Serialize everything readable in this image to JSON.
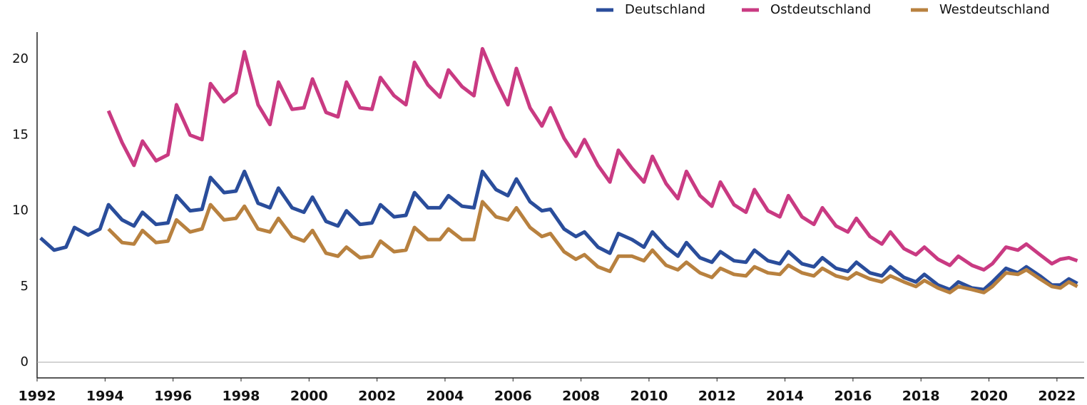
{
  "chart_data": {
    "type": "line",
    "x": [
      1992.1,
      1992.5,
      1992.85,
      1993.1,
      1993.5,
      1993.85,
      1994.1,
      1994.5,
      1994.85,
      1995.1,
      1995.5,
      1995.85,
      1996.1,
      1996.5,
      1996.85,
      1997.1,
      1997.5,
      1997.85,
      1998.1,
      1998.5,
      1998.85,
      1999.1,
      1999.5,
      1999.85,
      2000.1,
      2000.5,
      2000.85,
      2001.1,
      2001.5,
      2001.85,
      2002.1,
      2002.5,
      2002.85,
      2003.1,
      2003.5,
      2003.85,
      2004.1,
      2004.5,
      2004.85,
      2005.1,
      2005.5,
      2005.85,
      2006.1,
      2006.5,
      2006.85,
      2007.1,
      2007.5,
      2007.85,
      2008.1,
      2008.5,
      2008.85,
      2009.1,
      2009.5,
      2009.85,
      2010.1,
      2010.5,
      2010.85,
      2011.1,
      2011.5,
      2011.85,
      2012.1,
      2012.5,
      2012.85,
      2013.1,
      2013.5,
      2013.85,
      2014.1,
      2014.5,
      2014.85,
      2015.1,
      2015.5,
      2015.85,
      2016.1,
      2016.5,
      2016.85,
      2017.1,
      2017.5,
      2017.85,
      2018.1,
      2018.5,
      2018.85,
      2019.1,
      2019.5,
      2019.85,
      2020.1,
      2020.5,
      2020.85,
      2021.1,
      2021.5,
      2021.85,
      2022.1,
      2022.35,
      2022.6
    ],
    "series": [
      {
        "name": "Deutschland",
        "color": "#2a4d9b",
        "values": [
          8.2,
          7.4,
          7.6,
          8.9,
          8.4,
          8.8,
          10.4,
          9.4,
          9.0,
          9.9,
          9.1,
          9.2,
          11.0,
          10.0,
          10.1,
          12.2,
          11.2,
          11.3,
          12.6,
          10.5,
          10.2,
          11.5,
          10.2,
          9.9,
          10.9,
          9.3,
          9.0,
          10.0,
          9.1,
          9.2,
          10.4,
          9.6,
          9.7,
          11.2,
          10.2,
          10.2,
          11.0,
          10.3,
          10.2,
          12.6,
          11.4,
          11.0,
          12.1,
          10.6,
          10.0,
          10.1,
          8.8,
          8.3,
          8.6,
          7.6,
          7.2,
          8.5,
          8.1,
          7.6,
          8.6,
          7.6,
          7.0,
          7.9,
          6.9,
          6.6,
          7.3,
          6.7,
          6.6,
          7.4,
          6.7,
          6.5,
          7.3,
          6.5,
          6.3,
          6.9,
          6.2,
          6.0,
          6.6,
          5.9,
          5.7,
          6.3,
          5.6,
          5.3,
          5.8,
          5.1,
          4.8,
          5.3,
          4.9,
          4.8,
          5.3,
          6.2,
          5.9,
          6.3,
          5.7,
          5.1,
          5.1,
          5.5,
          5.2
        ]
      },
      {
        "name": "Ostdeutschland",
        "color": "#c93a82",
        "values": [
          null,
          null,
          null,
          null,
          null,
          null,
          16.6,
          14.5,
          13.0,
          14.6,
          13.3,
          13.7,
          17.0,
          15.0,
          14.7,
          18.4,
          17.2,
          17.8,
          20.5,
          17.0,
          15.7,
          18.5,
          16.7,
          16.8,
          18.7,
          16.5,
          16.2,
          18.5,
          16.8,
          16.7,
          18.8,
          17.6,
          17.0,
          19.8,
          18.3,
          17.5,
          19.3,
          18.2,
          17.6,
          20.7,
          18.6,
          17.0,
          19.4,
          16.8,
          15.6,
          16.8,
          14.8,
          13.6,
          14.7,
          13.0,
          11.9,
          14.0,
          12.8,
          11.9,
          13.6,
          11.8,
          10.8,
          12.6,
          11.0,
          10.3,
          11.9,
          10.4,
          9.9,
          11.4,
          10.0,
          9.6,
          11.0,
          9.6,
          9.1,
          10.2,
          9.0,
          8.6,
          9.5,
          8.3,
          7.8,
          8.6,
          7.5,
          7.1,
          7.6,
          6.8,
          6.4,
          7.0,
          6.4,
          6.1,
          6.5,
          7.6,
          7.4,
          7.8,
          7.1,
          6.5,
          6.8,
          6.9,
          6.7
        ]
      },
      {
        "name": "Westdeutschland",
        "color": "#b8813f",
        "values": [
          null,
          null,
          null,
          null,
          null,
          null,
          8.8,
          7.9,
          7.8,
          8.7,
          7.9,
          8.0,
          9.4,
          8.6,
          8.8,
          10.4,
          9.4,
          9.5,
          10.3,
          8.8,
          8.6,
          9.5,
          8.3,
          8.0,
          8.7,
          7.2,
          7.0,
          7.6,
          6.9,
          7.0,
          8.0,
          7.3,
          7.4,
          8.9,
          8.1,
          8.1,
          8.8,
          8.1,
          8.1,
          10.6,
          9.6,
          9.4,
          10.2,
          8.9,
          8.3,
          8.5,
          7.3,
          6.8,
          7.1,
          6.3,
          6.0,
          7.0,
          7.0,
          6.7,
          7.4,
          6.4,
          6.1,
          6.6,
          5.9,
          5.6,
          6.2,
          5.8,
          5.7,
          6.3,
          5.9,
          5.8,
          6.4,
          5.9,
          5.7,
          6.2,
          5.7,
          5.5,
          5.9,
          5.5,
          5.3,
          5.7,
          5.3,
          5.0,
          5.4,
          4.9,
          4.6,
          5.0,
          4.8,
          4.6,
          5.0,
          5.9,
          5.8,
          6.1,
          5.5,
          5.0,
          4.9,
          5.3,
          5.0
        ]
      }
    ],
    "xlim": [
      1992,
      2022.8
    ],
    "xticks": [
      1992,
      1994,
      1996,
      1998,
      2000,
      2002,
      2004,
      2006,
      2008,
      2010,
      2012,
      2014,
      2016,
      2018,
      2020,
      2022
    ],
    "ylim": [
      0,
      21.8
    ],
    "yticks": [
      0,
      5,
      10,
      15,
      20
    ],
    "legend": "top-right"
  }
}
